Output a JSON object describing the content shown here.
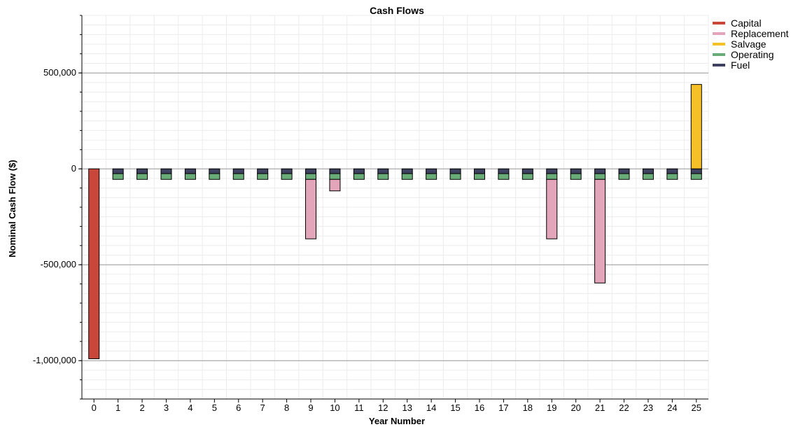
{
  "chart_data": {
    "type": "bar",
    "stacked": true,
    "title": "Cash Flows",
    "xlabel": "Year Number",
    "ylabel": "Nominal Cash Flow ($)",
    "categories": [
      "0",
      "1",
      "2",
      "3",
      "4",
      "5",
      "6",
      "7",
      "8",
      "9",
      "10",
      "11",
      "12",
      "13",
      "14",
      "15",
      "16",
      "17",
      "18",
      "19",
      "20",
      "21",
      "22",
      "23",
      "24",
      "25"
    ],
    "ylim": [
      -1200000,
      800000
    ],
    "yticks": [
      -1000000,
      -500000,
      0,
      500000
    ],
    "ytick_labels": [
      "-1,000,000",
      "-500,000",
      "0",
      "500,000"
    ],
    "grid": true,
    "legend_position": "right",
    "series": [
      {
        "name": "Capital",
        "color": "#c8473a",
        "values": [
          -990000,
          0,
          0,
          0,
          0,
          0,
          0,
          0,
          0,
          0,
          0,
          0,
          0,
          0,
          0,
          0,
          0,
          0,
          0,
          0,
          0,
          0,
          0,
          0,
          0,
          0
        ]
      },
      {
        "name": "Replacement",
        "color": "#e3a5b9",
        "values": [
          0,
          0,
          0,
          0,
          0,
          0,
          0,
          0,
          0,
          -310000,
          -60000,
          0,
          0,
          0,
          0,
          0,
          0,
          0,
          0,
          -310000,
          0,
          -540000,
          0,
          0,
          0,
          0
        ]
      },
      {
        "name": "Salvage",
        "color": "#f5c028",
        "values": [
          0,
          0,
          0,
          0,
          0,
          0,
          0,
          0,
          0,
          0,
          0,
          0,
          0,
          0,
          0,
          0,
          0,
          0,
          0,
          0,
          0,
          0,
          0,
          0,
          0,
          440000
        ]
      },
      {
        "name": "Operating",
        "color": "#6aac78",
        "values": [
          0,
          -30000,
          -30000,
          -30000,
          -30000,
          -30000,
          -30000,
          -30000,
          -30000,
          -30000,
          -30000,
          -30000,
          -30000,
          -30000,
          -30000,
          -30000,
          -30000,
          -30000,
          -30000,
          -30000,
          -30000,
          -30000,
          -30000,
          -30000,
          -30000,
          -30000
        ]
      },
      {
        "name": "Fuel",
        "color": "#3e4160",
        "values": [
          0,
          -25000,
          -25000,
          -25000,
          -25000,
          -25000,
          -25000,
          -25000,
          -25000,
          -25000,
          -25000,
          -25000,
          -25000,
          -25000,
          -25000,
          -25000,
          -25000,
          -25000,
          -25000,
          -25000,
          -25000,
          -25000,
          -25000,
          -25000,
          -25000,
          -25000
        ]
      }
    ]
  }
}
